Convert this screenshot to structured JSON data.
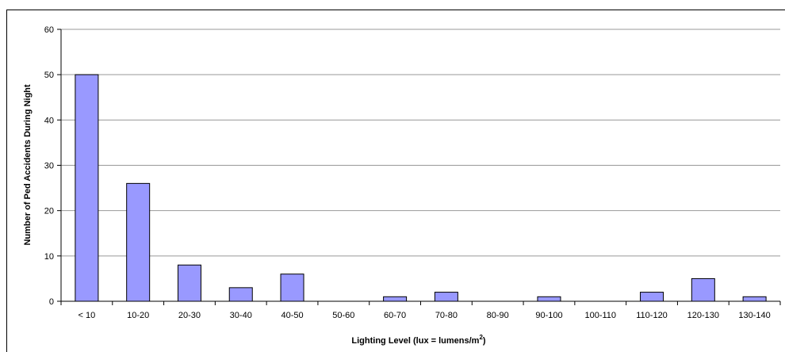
{
  "chart_data": {
    "type": "bar",
    "title": "",
    "xlabel": "Lighting Level (lux = lumens/m",
    "xlabel_superscript": "2",
    "xlabel_suffix": ")",
    "ylabel": "Number of Ped Accidents During Night",
    "categories": [
      "< 10",
      "10-20",
      "20-30",
      "30-40",
      "40-50",
      "50-60",
      "60-70",
      "70-80",
      "80-90",
      "90-100",
      "100-110",
      "110-120",
      "120-130",
      "130-140"
    ],
    "values": [
      50,
      26,
      8,
      3,
      6,
      0,
      1,
      2,
      0,
      1,
      0,
      2,
      5,
      1
    ],
    "ylim": [
      0,
      60
    ],
    "yticks": [
      0,
      10,
      20,
      30,
      40,
      50,
      60
    ],
    "grid": true,
    "bar_color": "#9999ff",
    "bar_edge_color": "#000000",
    "grid_color": "#999999"
  }
}
